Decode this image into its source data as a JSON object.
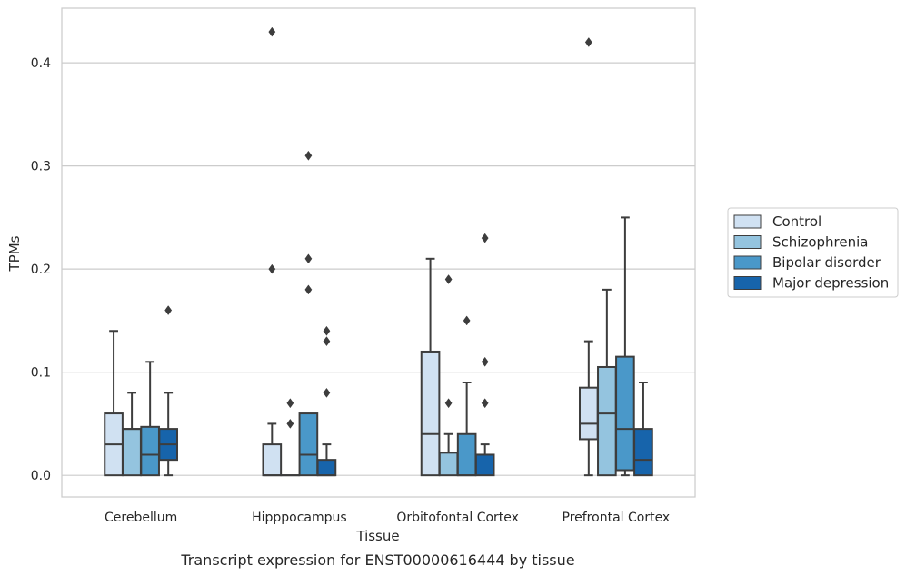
{
  "chart_data": {
    "type": "box",
    "ylabel": "TPMs",
    "xlabel": "Tissue",
    "caption": "Transcript expression for ENST00000616444 by tissue",
    "ylim": [
      -0.021,
      0.453
    ],
    "yticks": [
      "0.0",
      "0.1",
      "0.2",
      "0.3",
      "0.4"
    ],
    "ytick_values": [
      0.0,
      0.1,
      0.2,
      0.3,
      0.4
    ],
    "grid": "horizontal",
    "legend_position": "right",
    "categories": [
      "Cerebellum",
      "Hipppocampus",
      "Orbitofontal Cortex",
      "Prefrontal Cortex"
    ],
    "series": [
      {
        "name": "Control",
        "color": "#d0e1f2",
        "boxes": [
          {
            "whislo": 0.0,
            "q1": 0.0,
            "med": 0.03,
            "q3": 0.06,
            "whishi": 0.14,
            "fliers": []
          },
          {
            "whislo": 0.0,
            "q1": 0.0,
            "med": 0.0,
            "q3": 0.03,
            "whishi": 0.05,
            "fliers": [
              0.2,
              0.43
            ]
          },
          {
            "whislo": 0.0,
            "q1": 0.0,
            "med": 0.04,
            "q3": 0.12,
            "whishi": 0.21,
            "fliers": []
          },
          {
            "whislo": 0.0,
            "q1": 0.035,
            "med": 0.05,
            "q3": 0.085,
            "whishi": 0.13,
            "fliers": [
              0.42
            ]
          }
        ]
      },
      {
        "name": "Schizophrenia",
        "color": "#94c4df",
        "boxes": [
          {
            "whislo": 0.0,
            "q1": 0.0,
            "med": 0.045,
            "q3": 0.045,
            "whishi": 0.08,
            "fliers": []
          },
          {
            "whislo": 0.0,
            "q1": 0.0,
            "med": 0.0,
            "q3": 0.0,
            "whishi": 0.0,
            "fliers": [
              0.05,
              0.07
            ]
          },
          {
            "whislo": 0.0,
            "q1": 0.0,
            "med": 0.022,
            "q3": 0.022,
            "whishi": 0.04,
            "fliers": [
              0.07,
              0.19
            ]
          },
          {
            "whislo": 0.0,
            "q1": 0.0,
            "med": 0.06,
            "q3": 0.105,
            "whishi": 0.18,
            "fliers": []
          }
        ]
      },
      {
        "name": "Bipolar disorder",
        "color": "#4a98c9",
        "boxes": [
          {
            "whislo": 0.0,
            "q1": 0.0,
            "med": 0.02,
            "q3": 0.047,
            "whishi": 0.11,
            "fliers": []
          },
          {
            "whislo": 0.0,
            "q1": 0.0,
            "med": 0.02,
            "q3": 0.06,
            "whishi": 0.06,
            "fliers": [
              0.18,
              0.21,
              0.31
            ]
          },
          {
            "whislo": 0.0,
            "q1": 0.0,
            "med": 0.0,
            "q3": 0.04,
            "whishi": 0.09,
            "fliers": [
              0.15
            ]
          },
          {
            "whislo": 0.0,
            "q1": 0.005,
            "med": 0.045,
            "q3": 0.115,
            "whishi": 0.25,
            "fliers": []
          }
        ]
      },
      {
        "name": "Major depression",
        "color": "#1764ab",
        "boxes": [
          {
            "whislo": 0.0,
            "q1": 0.015,
            "med": 0.03,
            "q3": 0.045,
            "whishi": 0.08,
            "fliers": [
              0.16
            ]
          },
          {
            "whislo": 0.0,
            "q1": 0.0,
            "med": 0.0,
            "q3": 0.015,
            "whishi": 0.03,
            "fliers": [
              0.08,
              0.13,
              0.14
            ]
          },
          {
            "whislo": 0.0,
            "q1": 0.0,
            "med": 0.02,
            "q3": 0.02,
            "whishi": 0.03,
            "fliers": [
              0.07,
              0.11,
              0.23
            ]
          },
          {
            "whislo": 0.0,
            "q1": 0.0,
            "med": 0.015,
            "q3": 0.045,
            "whishi": 0.09,
            "fliers": []
          }
        ]
      }
    ],
    "colors": {
      "box_edge": "#3d3d3d",
      "grid": "#cccccc",
      "frame": "#cccccc",
      "legend_frame": "#cccccc"
    }
  }
}
